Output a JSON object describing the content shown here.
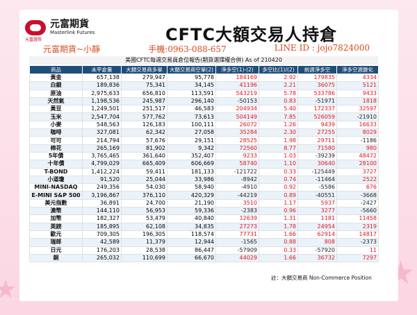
{
  "header": {
    "logo_cn": "元富期貨",
    "logo_en": "Masterlink Futures",
    "logo_sub": "元富證券",
    "title": "CFTC大額交易人持倉"
  },
  "banner": {
    "name": "元富期貨~小靜",
    "phone": "手機:0963-088-657",
    "line": "LINE ID : jojo7824000"
  },
  "report_title": "美國CFTC每週交易員倉位報告(期貨選擇權合併) As of 210420",
  "columns": [
    "商品",
    "未平倉量",
    "大額交易商多單",
    "大額交易商空單(2)",
    "淨多空(1)-(2)",
    "多空比(1)/(2)",
    "前週淨多空",
    "淨多空週變化"
  ],
  "rows": [
    [
      "黃金",
      "657,138",
      "279,947",
      "95,778",
      "184169",
      "2.92",
      "179835",
      "4334"
    ],
    [
      "白銀",
      "189,836",
      "75,341",
      "34,145",
      "41196",
      "2.21",
      "36075",
      "5121"
    ],
    [
      "原油",
      "2,975,633",
      "656,810",
      "113,591",
      "543219",
      "5.78",
      "533786",
      "9433"
    ],
    [
      "天然氣",
      "1,198,536",
      "245,987",
      "296,140",
      "-50153",
      "0.83",
      "-51971",
      "1818"
    ],
    [
      "黃豆",
      "1,249,501",
      "251,517",
      "46,583",
      "204934",
      "5.40",
      "172337",
      "32597"
    ],
    [
      "玉米",
      "2,547,704",
      "577,762",
      "73,613",
      "504149",
      "7.85",
      "526059",
      "-21910"
    ],
    [
      "小麥",
      "548,563",
      "126,183",
      "100,111",
      "26072",
      "1.26",
      "9439",
      "16633"
    ],
    [
      "咖啡",
      "327,081",
      "62,342",
      "27,058",
      "35284",
      "2.30",
      "27255",
      "8029"
    ],
    [
      "可可",
      "214,794",
      "57,676",
      "29,151",
      "28525",
      "1.98",
      "29711",
      "-1186"
    ],
    [
      "棉花",
      "265,169",
      "81,902",
      "9,342",
      "72560",
      "8.77",
      "71580",
      "980"
    ],
    [
      "5年債",
      "3,765,465",
      "361,640",
      "352,407",
      "9233",
      "1.03",
      "-39239",
      "48472"
    ],
    [
      "十年債",
      "4,799,029",
      "665,409",
      "606,669",
      "58740",
      "1.10",
      "30640",
      "28100"
    ],
    [
      "T-BOND",
      "1,412,224",
      "59,411",
      "181,133",
      "-121722",
      "0.33",
      "-125449",
      "3727"
    ],
    [
      "小道瓊",
      "91,520",
      "25,044",
      "33,986",
      "-8942",
      "0.74",
      "-11464",
      "2522"
    ],
    [
      "MINI-NASDAQ",
      "249,356",
      "54,030",
      "58,940",
      "-4910",
      "0.92",
      "-5586",
      "676"
    ],
    [
      "E-MINI S&P 500",
      "3,196,867",
      "376,110",
      "420,329",
      "-44219",
      "0.89",
      "-40551",
      "-3668"
    ],
    [
      "美元指數",
      "36,891",
      "24,700",
      "21,190",
      "3510",
      "1.17",
      "5937",
      "-2427"
    ],
    [
      "澳幣",
      "144,110",
      "56,953",
      "59,336",
      "-2383",
      "0.96",
      "3277",
      "-5660"
    ],
    [
      "加幣",
      "182,327",
      "53,479",
      "40,840",
      "12639",
      "1.31",
      "1181",
      "11458"
    ],
    [
      "英鎊",
      "185,895",
      "62,108",
      "34,835",
      "27273",
      "1.78",
      "24954",
      "2319"
    ],
    [
      "歐元",
      "709,305",
      "196,305",
      "118,574",
      "77731",
      "1.66",
      "62914",
      "14817"
    ],
    [
      "瑞郎",
      "42,589",
      "11,379",
      "12,944",
      "-1565",
      "0.88",
      "808",
      "-2373"
    ],
    [
      "日元",
      "176,203",
      "28,538",
      "86,447",
      "-57909",
      "0.33",
      "-57920",
      "11"
    ],
    [
      "銅",
      "265,032",
      "110,699",
      "66,670",
      "44029",
      "1.66",
      "36732",
      "7297"
    ]
  ],
  "footnote": "註：大額交易商 Non-Commerce Position",
  "colors": {
    "header_bg": "#1f4e79",
    "positive": "#e0141e",
    "banner": "#d84a1b",
    "logo": "#c8102e"
  }
}
